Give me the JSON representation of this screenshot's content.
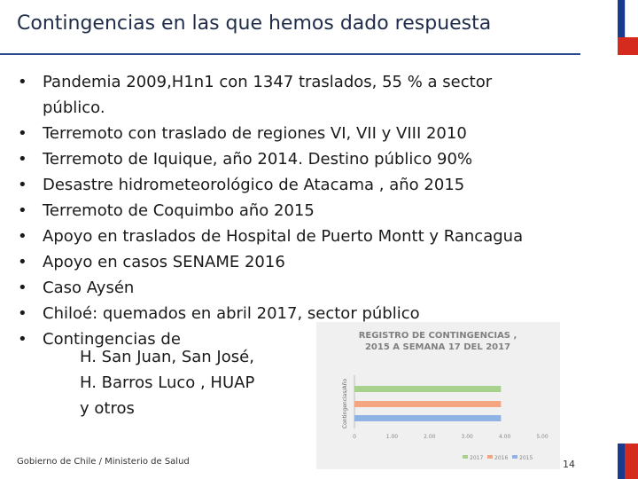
{
  "slide": {
    "title": "Contingencias en las que hemos dado respuesta",
    "bullets": [
      "Pandemia 2009,H1n1 con 1347 traslados, 55 % a sector",
      "público.",
      "Terremoto con traslado de regiones VI, VII y VIII 2010",
      "Terremoto de Iquique, año 2014. Destino público 90%",
      "Desastre hidrometeorológico de Atacama , año 2015",
      "Terremoto de Coquimbo año 2015",
      "Apoyo en traslados de Hospital de Puerto Montt y Rancagua",
      "Apoyo en casos SENAME 2016",
      "Caso Aysén",
      "Chiloé: quemados en abril 2017, sector público",
      "Contingencias de"
    ],
    "sub_lines": [
      "H. San Juan, San José,",
      "H. Barros Luco , HUAP",
      "y otros"
    ],
    "bullet_char": "•",
    "footer": "Gobierno de Chile / Ministerio de Salud",
    "page_number": "14"
  },
  "colors": {
    "title": "#1f2d4a",
    "rule": "#2b4a8c",
    "flag_blue": "#1a3a8f",
    "flag_red": "#d52b1e",
    "series_2017": "#a9d18e",
    "series_2016": "#f4a582",
    "series_2015": "#8fb4e3"
  },
  "chart_data": {
    "type": "bar",
    "orientation": "horizontal",
    "title": "REGISTRO DE CONTINGENCIAS , 2015 A SEMANA 17 DEL 2017",
    "ylabel": "Contingencias/Año",
    "xticks": [
      "0",
      "1.00",
      "2.00",
      "3.00",
      "4.00",
      "5.00"
    ],
    "series": [
      {
        "name": "2017",
        "values": [
          3.9
        ]
      },
      {
        "name": "2016",
        "values": [
          3.9
        ]
      },
      {
        "name": "2015",
        "values": [
          3.9
        ]
      }
    ],
    "xlim": [
      0,
      5
    ],
    "legend_position": "bottom-right"
  }
}
